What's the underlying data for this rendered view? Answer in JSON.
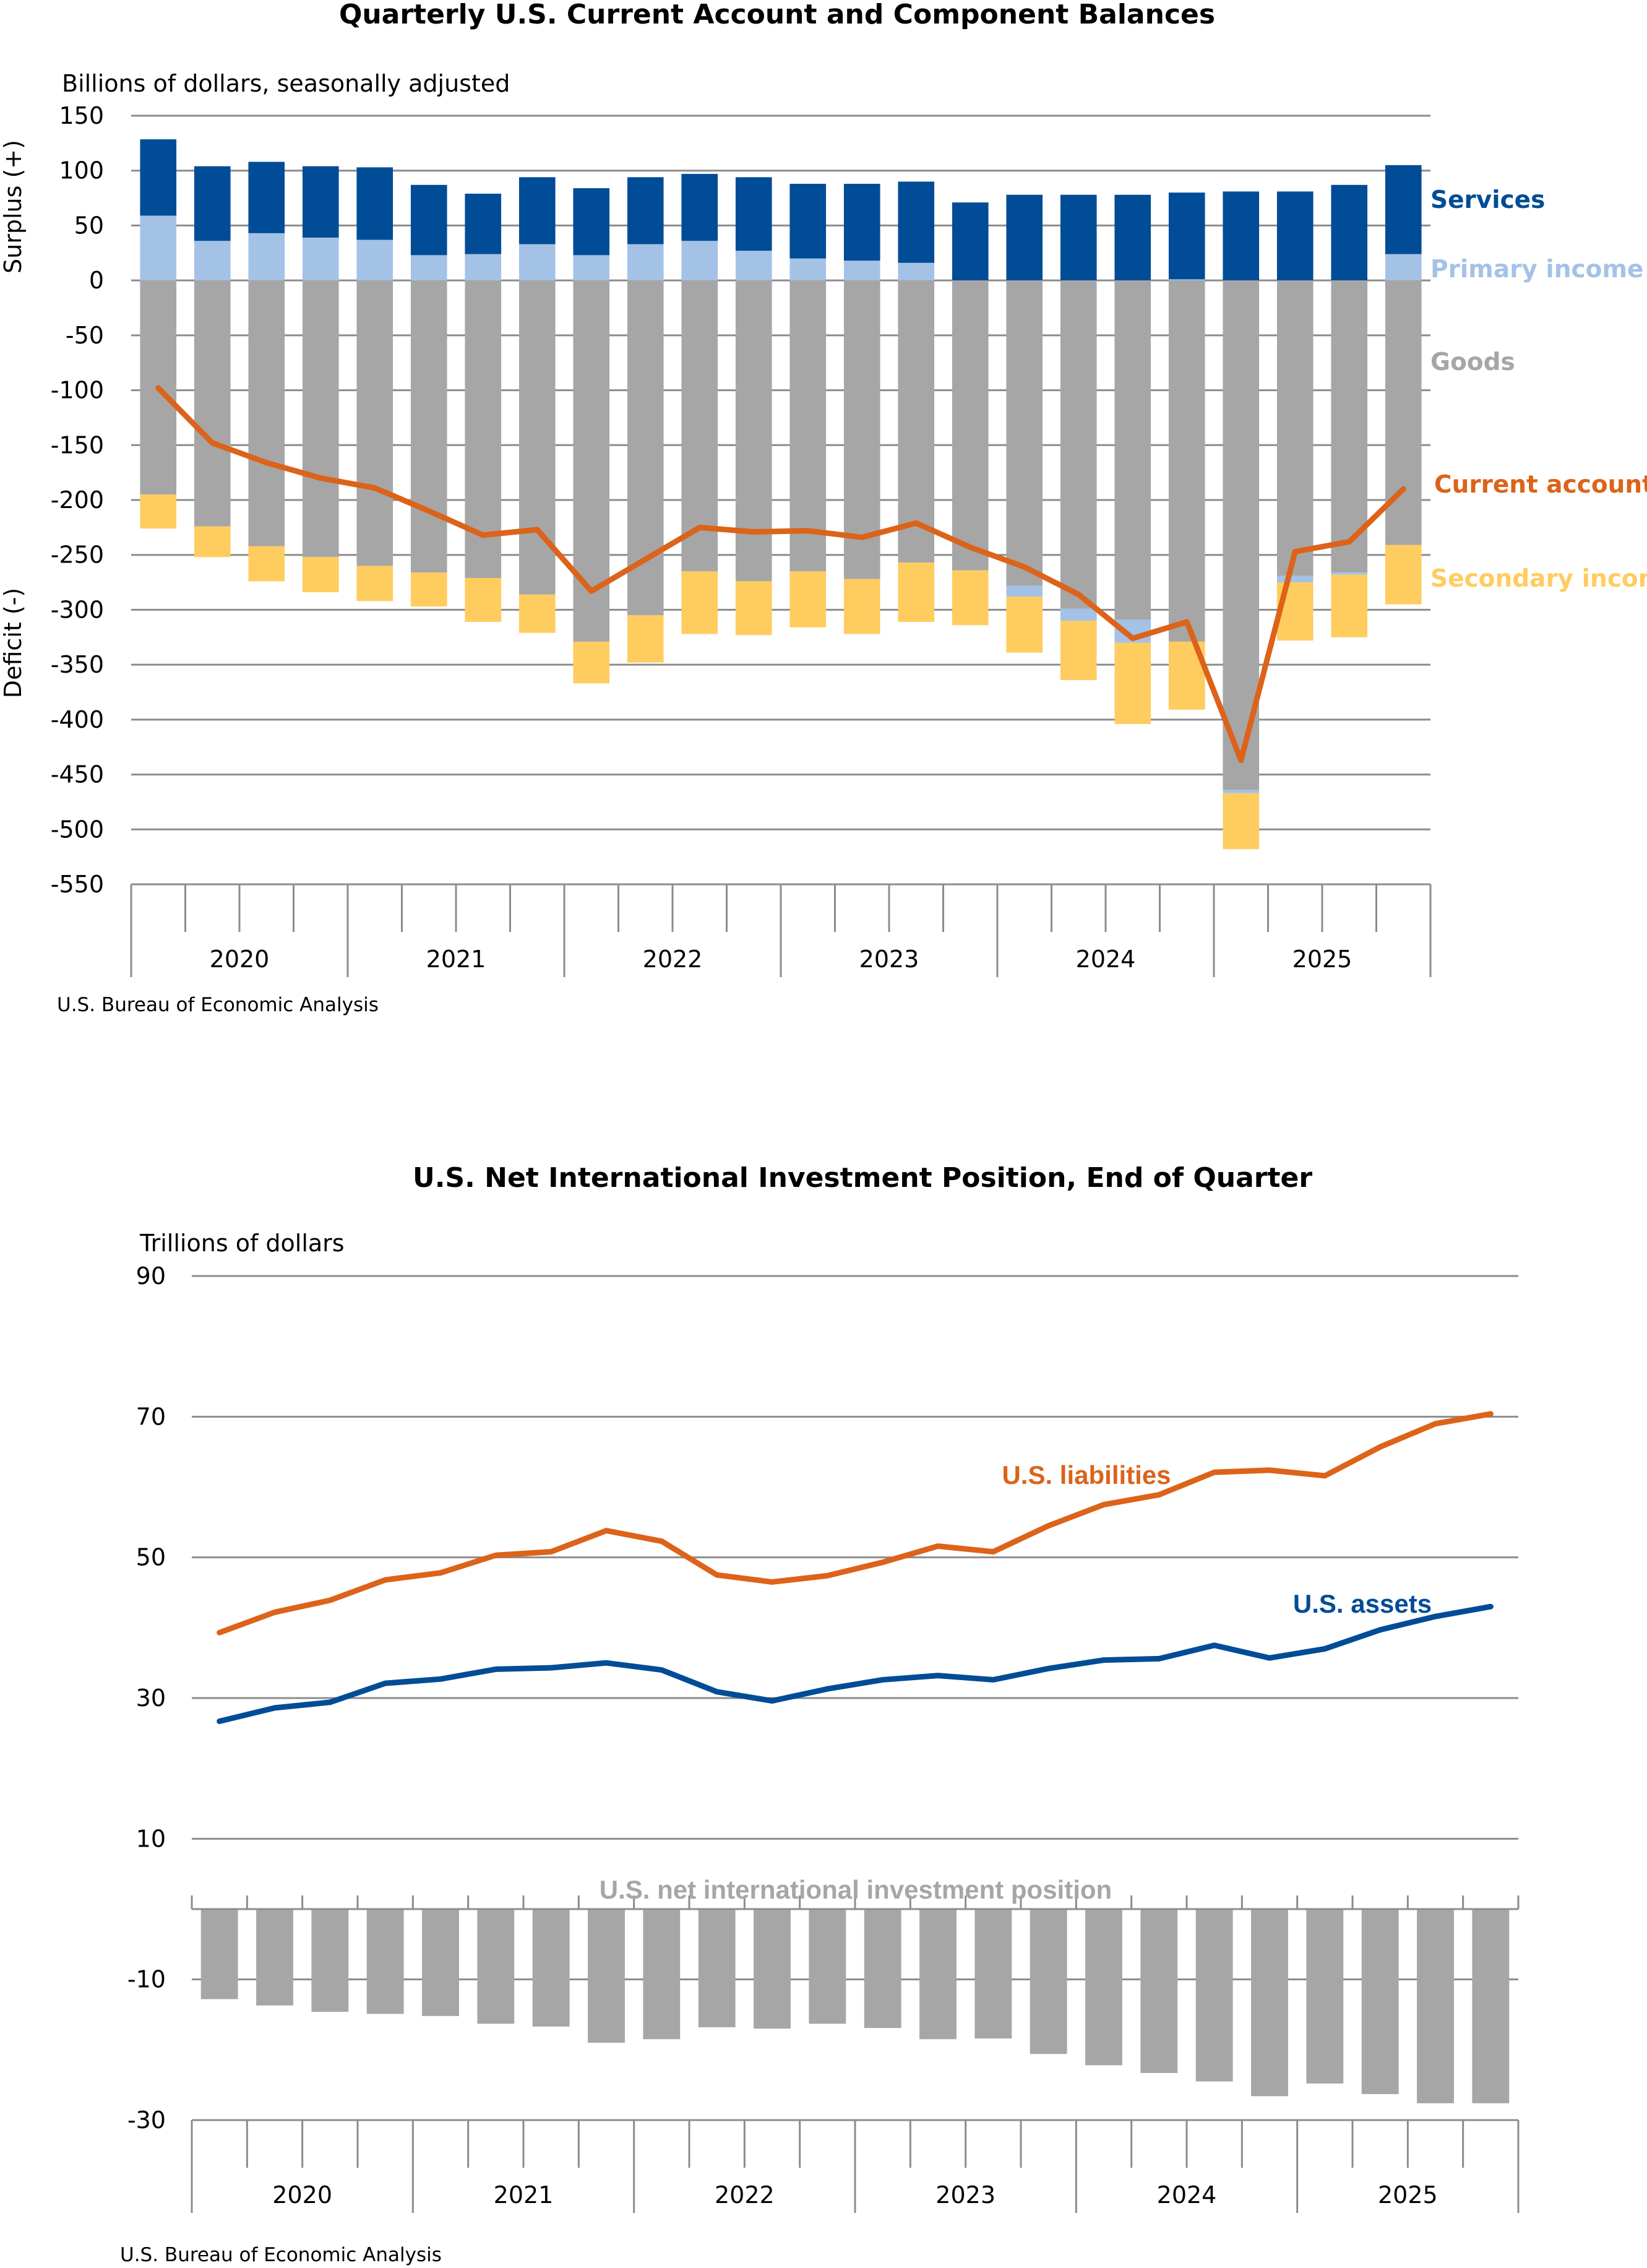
{
  "colors": {
    "services": "#004C97",
    "primary_income": "#A4C2E6",
    "goods": "#A6A6A6",
    "secondary_income": "#FFCC5F",
    "current_account": "#DC6319",
    "liabilities": "#DC6319",
    "assets": "#004C97",
    "niip": "#A6A6A6",
    "grid": "#8C8C8C"
  },
  "chart_data": [
    {
      "type": "bar",
      "stacked": true,
      "title": "Quarterly U.S. Current Account and Component Balances",
      "subtitle": "Billions of dollars, seasonally adjusted",
      "ylabel_top": "Surplus (+)",
      "ylabel_bottom": "Deficit (-)",
      "source": "U.S. Bureau of Economic Analysis",
      "ylim": [
        -550,
        150
      ],
      "yticks": [
        150,
        100,
        50,
        0,
        -50,
        -100,
        -150,
        -200,
        -250,
        -300,
        -350,
        -400,
        -450,
        -500,
        -550
      ],
      "years": [
        "2020",
        "2021",
        "2022",
        "2023",
        "2024",
        "2025"
      ],
      "quarters_per_year": 4,
      "grid": true,
      "legend_placement": "right",
      "series": [
        {
          "name": "Services",
          "key": "services",
          "values": [
            69.5,
            68,
            65,
            65,
            66,
            64,
            55,
            61,
            61,
            61,
            61,
            67,
            68,
            70,
            74,
            71,
            78,
            78,
            78,
            79,
            81,
            81,
            87,
            81
          ]
        },
        {
          "name": "Primary income",
          "key": "primary_income",
          "values": [
            59,
            36,
            43,
            39,
            37,
            23,
            24,
            33,
            23,
            33,
            36,
            27,
            20,
            18,
            16,
            0,
            -10,
            -11,
            -21,
            1,
            -3,
            -6,
            -2,
            24
          ]
        },
        {
          "name": "Goods",
          "key": "goods",
          "values": [
            -195,
            -224,
            -242,
            -252,
            -260,
            -266,
            -271,
            -286,
            -329,
            -305,
            -265,
            -274,
            -265,
            -272,
            -257,
            -264,
            -278,
            -299,
            -309,
            -329,
            -464,
            -269,
            -266,
            -241
          ]
        },
        {
          "name": "Secondary income",
          "key": "secondary_income",
          "values": [
            -31,
            -28,
            -32,
            -32,
            -32,
            -31,
            -40,
            -35,
            -38,
            -43,
            -57,
            -49,
            -51,
            -50,
            -54,
            -50,
            -51,
            -54,
            -74,
            -62,
            -51,
            -53,
            -57,
            -54
          ]
        },
        {
          "name": "Current account",
          "key": "current_account",
          "type": "line",
          "values": [
            -98,
            -148,
            -166,
            -180,
            -189,
            -210,
            -232,
            -227,
            -283,
            -254,
            -225,
            -229,
            -228,
            -234,
            -221,
            -243,
            -261,
            -286,
            -326,
            -311,
            -437,
            -247,
            -238,
            -190
          ]
        }
      ]
    },
    {
      "type": "line",
      "title": "U.S. Net International Investment Position, End of Quarter",
      "subtitle": "Trillions of dollars",
      "source": "U.S. Bureau of Economic Analysis",
      "ylim": [
        -30,
        90
      ],
      "yticks": [
        90,
        70,
        50,
        30,
        10,
        -10,
        -30
      ],
      "years": [
        "2020",
        "2021",
        "2022",
        "2023",
        "2024",
        "2025"
      ],
      "quarters_per_year": 4,
      "grid": true,
      "series": [
        {
          "name": "U.S. liabilities",
          "key": "liabilities",
          "type": "line",
          "values": [
            39.3,
            42.2,
            43.9,
            46.8,
            47.8,
            50.3,
            50.8,
            53.8,
            52.3,
            47.5,
            46.5,
            47.4,
            49.3,
            51.6,
            50.8,
            54.5,
            57.5,
            58.9,
            62.1,
            62.4,
            61.6,
            65.7,
            69.0,
            70.4
          ]
        },
        {
          "name": "U.S. assets",
          "key": "assets",
          "type": "line",
          "values": [
            26.7,
            28.6,
            29.4,
            32.1,
            32.7,
            34.1,
            34.3,
            35.0,
            34.0,
            30.9,
            29.6,
            31.3,
            32.6,
            33.2,
            32.6,
            34.2,
            35.4,
            35.6,
            37.5,
            35.7,
            37.0,
            39.7,
            41.6,
            43.0
          ]
        },
        {
          "name": "U.S. net international investment position",
          "key": "niip",
          "type": "bar",
          "values": [
            -12.8,
            -13.7,
            -14.6,
            -14.9,
            -15.2,
            -16.3,
            -16.7,
            -19.0,
            -18.5,
            -16.8,
            -17.0,
            -16.3,
            -16.9,
            -18.5,
            -18.4,
            -20.6,
            -22.2,
            -23.3,
            -24.5,
            -26.6,
            -24.8,
            -26.3,
            -27.6,
            -27.6
          ]
        }
      ]
    }
  ]
}
